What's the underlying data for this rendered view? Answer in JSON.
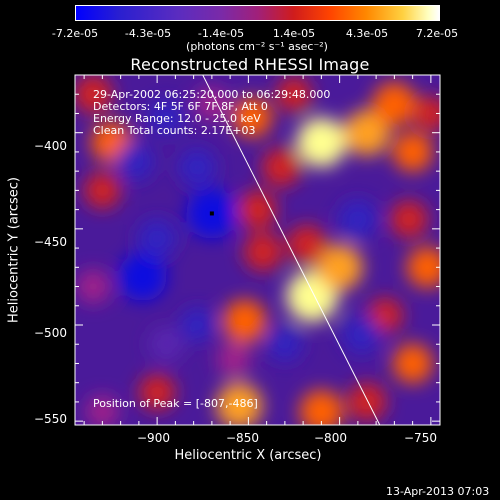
{
  "colorbar": {
    "ticks": [
      "-7.2e-05",
      "-4.3e-05",
      "-1.4e-05",
      "1.4e-05",
      "4.3e-05",
      "7.2e-05"
    ],
    "unit": "(photons cm⁻² s⁻¹ asec⁻²)",
    "range": [
      -7.2e-05,
      7.2e-05
    ]
  },
  "info": {
    "time": "29-Apr-2002 06:25:20.000 to 06:29:48.000",
    "detectors": "Detectors: 4F 5F 6F 7F 8F, Att 0",
    "energy": "Energy Range: 12.0 - 25.0 keV",
    "clean": "Clean     Total counts: 2.17E+03",
    "peak": "Position of Peak = [-807,-486]"
  },
  "footer": "13-Apr-2013 07:03",
  "chart_data": {
    "type": "heatmap",
    "title": "Reconstructed RHESSI Image",
    "xlabel": "Heliocentric X (arcsec)",
    "ylabel": "Heliocentric Y (arcsec)",
    "xlim": [
      -945,
      -745
    ],
    "ylim": [
      -552,
      -370
    ],
    "xticks": [
      -900,
      -850,
      -800,
      -750
    ],
    "yticks": [
      -400,
      -450,
      -500,
      -550
    ],
    "xtick_labels": [
      "−900",
      "−850",
      "−800",
      "−750"
    ],
    "ytick_labels": [
      "−400",
      "−450",
      "−500",
      "−550"
    ],
    "limb_line": {
      "x": [
        -875,
        -778
      ],
      "y": [
        -370,
        -552
      ]
    },
    "marker": {
      "x": -870,
      "y": -442
    },
    "blobs": [
      {
        "x": -935,
        "y": -380,
        "v": 0.45
      },
      {
        "x": -925,
        "y": -405,
        "v": 0.55
      },
      {
        "x": -930,
        "y": -430,
        "v": 0.35
      },
      {
        "x": -935,
        "y": -480,
        "v": 0.25
      },
      {
        "x": -930,
        "y": -545,
        "v": 0.2
      },
      {
        "x": -900,
        "y": -535,
        "v": 0.35
      },
      {
        "x": -908,
        "y": -475,
        "v": -0.85
      },
      {
        "x": -900,
        "y": -455,
        "v": -0.5
      },
      {
        "x": -870,
        "y": -442,
        "v": -0.95
      },
      {
        "x": -878,
        "y": -418,
        "v": -0.45
      },
      {
        "x": -912,
        "y": -415,
        "v": -0.45
      },
      {
        "x": -895,
        "y": -392,
        "v": -0.35
      },
      {
        "x": -870,
        "y": -385,
        "v": 0.25
      },
      {
        "x": -848,
        "y": -392,
        "v": 0.5
      },
      {
        "x": -832,
        "y": -418,
        "v": 0.45
      },
      {
        "x": -845,
        "y": -440,
        "v": 0.45
      },
      {
        "x": -842,
        "y": -462,
        "v": 0.45
      },
      {
        "x": -852,
        "y": -498,
        "v": 0.65
      },
      {
        "x": -858,
        "y": -518,
        "v": 0.25
      },
      {
        "x": -855,
        "y": -542,
        "v": 0.75
      },
      {
        "x": -810,
        "y": -545,
        "v": 0.65
      },
      {
        "x": -815,
        "y": -485,
        "v": 1.0
      },
      {
        "x": -800,
        "y": -470,
        "v": 0.75
      },
      {
        "x": -818,
        "y": -458,
        "v": 0.45
      },
      {
        "x": -810,
        "y": -405,
        "v": 0.9
      },
      {
        "x": -785,
        "y": -400,
        "v": 0.75
      },
      {
        "x": -770,
        "y": -385,
        "v": 0.65
      },
      {
        "x": -760,
        "y": -410,
        "v": 0.5
      },
      {
        "x": -762,
        "y": -445,
        "v": 0.4
      },
      {
        "x": -752,
        "y": -470,
        "v": 0.55
      },
      {
        "x": -775,
        "y": -495,
        "v": 0.3
      },
      {
        "x": -760,
        "y": -520,
        "v": 0.5
      },
      {
        "x": -785,
        "y": -540,
        "v": 0.45
      },
      {
        "x": -790,
        "y": -445,
        "v": -0.5
      },
      {
        "x": -788,
        "y": -505,
        "v": -0.45
      },
      {
        "x": -830,
        "y": -510,
        "v": -0.3
      },
      {
        "x": -878,
        "y": -500,
        "v": -0.3
      },
      {
        "x": -895,
        "y": -510,
        "v": -0.25
      },
      {
        "x": -825,
        "y": -380,
        "v": 0.3
      },
      {
        "x": -750,
        "y": -390,
        "v": 0.3
      }
    ]
  }
}
